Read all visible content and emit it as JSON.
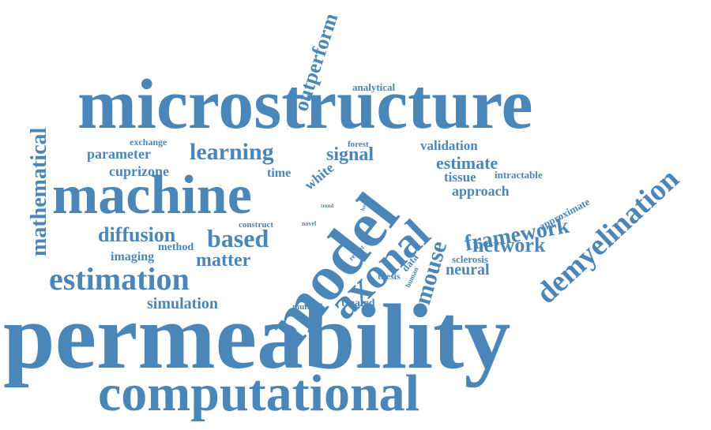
{
  "color": "#4b86b8",
  "words": {
    "permeability": "permeability",
    "microstructure": "microstructure",
    "computational": "computational",
    "machine": "machine",
    "model": "model",
    "axonal": "axonal",
    "demyelination": "demyelination",
    "estimation": "estimation",
    "mathematical": "mathematical",
    "outperform": "outperform",
    "learning": "learning",
    "diffusion": "diffusion",
    "based": "based",
    "framework": "framework",
    "mouse": "mouse",
    "network": "network",
    "matter": "matter",
    "simulation": "simulation",
    "parameter": "parameter",
    "cuprizone": "cuprizone",
    "signal": "signal",
    "estimate": "estimate",
    "validation": "validation",
    "approach": "approach",
    "tissue": "tissue",
    "neural": "neural",
    "imaging": "imaging",
    "method": "method",
    "time": "time",
    "white": "white",
    "exchange": "exchange",
    "analytical": "analytical",
    "forest": "forest",
    "intractable": "intractable",
    "approximate": "approximate",
    "sclerosis": "sclerosis",
    "data": "data",
    "thesis": "thesis",
    "treated": "treated",
    "multiple": "multiple",
    "construct": "construct",
    "novel": "novel",
    "trend": "trend",
    "recent": "recent",
    "human": "human",
    "hora": "hora"
  }
}
